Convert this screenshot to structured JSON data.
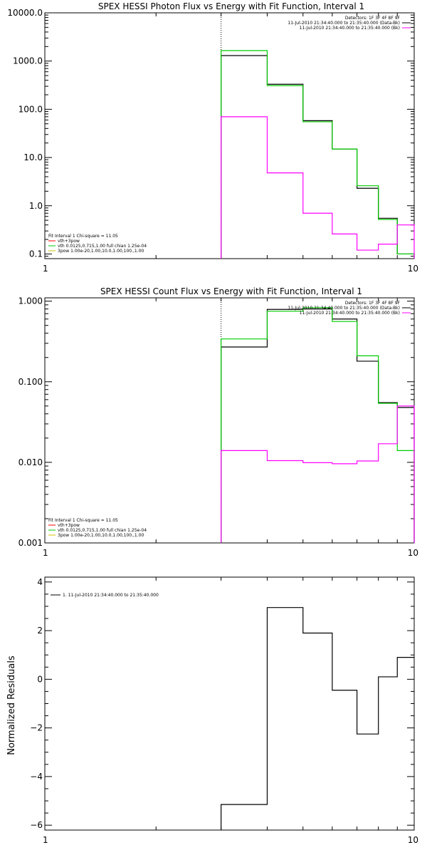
{
  "colors": {
    "black": "#000000",
    "green": "#00cc00",
    "magenta": "#ff00ff",
    "red": "#ff0000",
    "yellow": "#d4c000"
  },
  "chart_data": [
    {
      "type": "line",
      "title": "SPEX HESSI Photon Flux vs Energy with Fit Function, Interval 1",
      "xlabel": "",
      "ylabel": "",
      "xscale": "log",
      "yscale": "log",
      "xlim": [
        1,
        10
      ],
      "ylim": [
        0.08,
        10000
      ],
      "xticks": [
        1,
        10
      ],
      "xtick_labels": [
        "1",
        "10"
      ],
      "yticks": [
        0.1,
        1,
        10,
        100,
        1000,
        10000
      ],
      "ytick_labels": [
        "0.1",
        "1.0",
        "10.0",
        "100.0",
        "1000.0",
        "10000.0"
      ],
      "vline_x": 3,
      "legend_top": [
        "Detectors: 1F 3F 4F 8F 9F",
        "11-Jul-2010 21:34:40.000 to 21:35:40.000 (Data-Bk)",
        "11-Jul-2010 21:34:40.000 to 21:35:40.000 (Bk)"
      ],
      "legend_top_colors": [
        "",
        "#000000",
        "#ff00ff"
      ],
      "legend_bottom_title": "Fit Interval 1    Chi-square = 11.05",
      "legend_bottom": [
        "vth+3pow",
        "vth 0.0125,0.715,1.00   full chian 1.25e-04",
        "3pow 1.00e-20,1.00,10.0,1.00,100.,1.00"
      ],
      "legend_bottom_colors": [
        "#ff0000",
        "#00cc00",
        "#d4c000"
      ],
      "edges": [
        3,
        4,
        5,
        6,
        7,
        8,
        9,
        10
      ],
      "series": [
        {
          "color": "#000000",
          "values": [
            1300,
            330,
            58,
            15,
            2.3,
            0.55,
            0.1
          ]
        },
        {
          "color": "#00cc00",
          "values": [
            1650,
            310,
            55,
            15,
            2.6,
            0.52,
            0.1
          ]
        },
        {
          "color": "#ff00ff",
          "values": [
            70,
            4.8,
            0.7,
            0.26,
            0.12,
            0.16,
            0.4
          ]
        }
      ]
    },
    {
      "type": "line",
      "title": "SPEX HESSI Count Flux vs Energy with Fit Function, Interval 1",
      "xlabel": "",
      "ylabel": "",
      "xscale": "log",
      "yscale": "log",
      "xlim": [
        1,
        10
      ],
      "ylim": [
        0.001,
        1.1
      ],
      "xticks": [
        1,
        10
      ],
      "xtick_labels": [
        "1",
        "10"
      ],
      "yticks": [
        0.001,
        0.01,
        0.1,
        1
      ],
      "ytick_labels": [
        "0.001",
        "0.010",
        "0.100",
        "1.000"
      ],
      "vline_x": 3,
      "legend_top": [
        "Detectors: 1F 3F 4F 8F 9F",
        "11-Jul-2010 21:34:40.000 to 21:35:40.000 (Data-Bk)",
        "11-Jul-2010 21:34:40.000 to 21:35:40.000 (Bk)"
      ],
      "legend_top_colors": [
        "",
        "#000000",
        "#ff00ff"
      ],
      "legend_bottom_title": "Fit Interval 1    Chi-square = 11.05",
      "legend_bottom": [
        "vth+3pow",
        "vth 0.0125,0.715,1.00   full chian 1.25e-04",
        "3pow 1.00e-20,1.00,10.0,1.00,100.,1.00"
      ],
      "legend_bottom_colors": [
        "#ff0000",
        "#00cc00",
        "#d4c000"
      ],
      "edges": [
        3,
        4,
        5,
        6,
        7,
        8,
        9,
        10
      ],
      "series": [
        {
          "color": "#000000",
          "values": [
            0.27,
            0.79,
            0.8,
            0.6,
            0.18,
            0.055,
            0.048
          ]
        },
        {
          "color": "#00cc00",
          "values": [
            0.34,
            0.75,
            0.83,
            0.56,
            0.21,
            0.054,
            0.014
          ]
        },
        {
          "color": "#ff00ff",
          "values": [
            0.014,
            0.0105,
            0.0099,
            0.0096,
            0.0104,
            0.017,
            0.05
          ]
        }
      ]
    },
    {
      "type": "line",
      "title": "",
      "xlabel": "",
      "ylabel": "Normalized Residuals",
      "xscale": "log",
      "yscale": "linear",
      "xlim": [
        1,
        10
      ],
      "ylim": [
        -6.2,
        4.2
      ],
      "xticks": [
        1,
        10
      ],
      "xtick_labels": [
        "1",
        "10"
      ],
      "yticks": [
        -6,
        -4,
        -2,
        0,
        2,
        4
      ],
      "ytick_labels": [
        "−6",
        "−4",
        "−2",
        "0",
        "2",
        "4"
      ],
      "legend_top": [
        "1. 11-Jul-2010 21:34:40.000 to 21:35:40.000"
      ],
      "legend_top_colors": [
        "#000000"
      ],
      "edges": [
        3,
        4,
        5,
        6,
        7,
        8,
        9,
        10
      ],
      "series": [
        {
          "color": "#000000",
          "values": [
            -5.15,
            2.95,
            1.9,
            -0.45,
            -2.25,
            0.1,
            0.9
          ]
        }
      ]
    }
  ]
}
